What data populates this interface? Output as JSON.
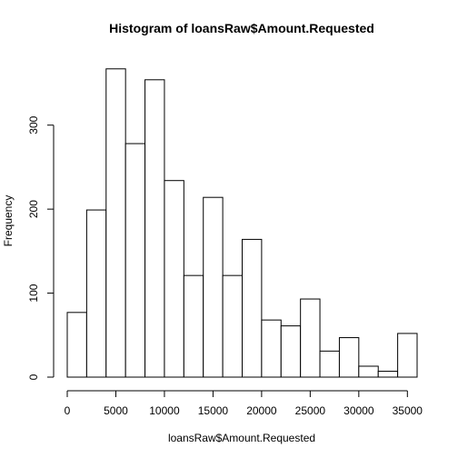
{
  "chart_data": {
    "type": "bar",
    "title": "Histogram of loansRaw$Amount.Requested",
    "xlabel": "loansRaw$Amount.Requested",
    "ylabel": "Frequency",
    "bin_edges": [
      0,
      2000,
      4000,
      6000,
      8000,
      10000,
      12000,
      14000,
      16000,
      18000,
      20000,
      22000,
      24000,
      26000,
      28000,
      30000,
      32000,
      34000,
      36000
    ],
    "values": [
      77,
      199,
      367,
      278,
      354,
      234,
      121,
      214,
      121,
      164,
      68,
      61,
      93,
      31,
      47,
      13,
      7,
      52
    ],
    "xlim": [
      0,
      36000
    ],
    "ylim": [
      0,
      370
    ],
    "x_ticks": [
      0,
      5000,
      10000,
      15000,
      20000,
      25000,
      30000,
      35000
    ],
    "y_ticks": [
      0,
      100,
      200,
      300
    ],
    "grid": false,
    "legend": "none"
  }
}
